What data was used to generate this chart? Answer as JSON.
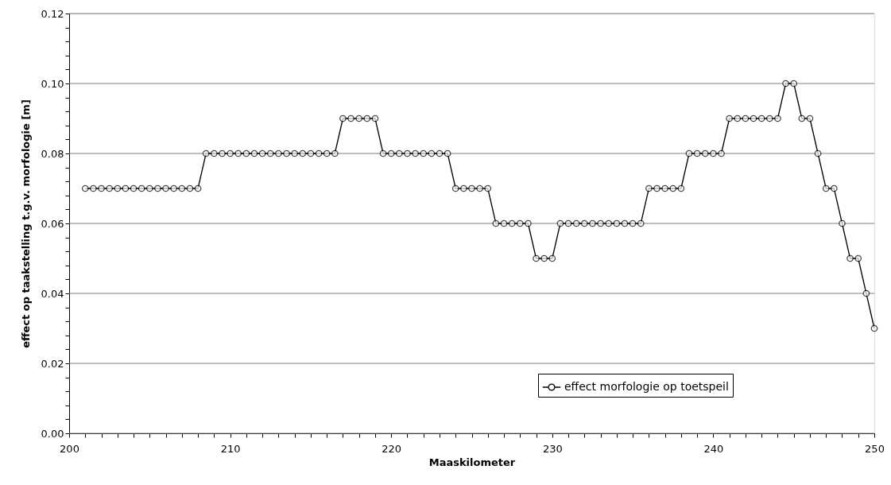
{
  "chart_data": {
    "type": "line",
    "xlabel": "Maaskilometer",
    "ylabel": "effect op taakstelling t.g.v. morfologie [m]",
    "x": [
      201,
      201.5,
      202,
      202.5,
      203,
      203.5,
      204,
      204.5,
      205,
      205.5,
      206,
      206.5,
      207,
      207.5,
      208,
      208.5,
      209,
      209.5,
      210,
      210.5,
      211,
      211.5,
      212,
      212.5,
      213,
      213.5,
      214,
      214.5,
      215,
      215.5,
      216,
      216.5,
      217,
      217.5,
      218,
      218.5,
      219,
      219.5,
      220,
      220.5,
      221,
      221.5,
      222,
      222.5,
      223,
      223.5,
      224,
      224.5,
      225,
      225.5,
      226,
      226.5,
      227,
      227.5,
      228,
      228.5,
      229,
      229.5,
      230,
      230.5,
      231,
      231.5,
      232,
      232.5,
      233,
      233.5,
      234,
      234.5,
      235,
      235.5,
      236,
      236.5,
      237,
      237.5,
      238,
      238.5,
      239,
      239.5,
      240,
      240.5,
      241,
      241.5,
      242,
      242.5,
      243,
      243.5,
      244,
      244.5,
      245,
      245.5,
      246,
      246.5,
      247,
      247.5,
      248,
      248.5,
      249,
      249.5,
      250
    ],
    "series": [
      {
        "name": "effect morfologie op toetspeil",
        "color": "#000000",
        "values": [
          0.07,
          0.07,
          0.07,
          0.07,
          0.07,
          0.07,
          0.07,
          0.07,
          0.07,
          0.07,
          0.07,
          0.07,
          0.07,
          0.07,
          0.07,
          0.08,
          0.08,
          0.08,
          0.08,
          0.08,
          0.08,
          0.08,
          0.08,
          0.08,
          0.08,
          0.08,
          0.08,
          0.08,
          0.08,
          0.08,
          0.08,
          0.08,
          0.09,
          0.09,
          0.09,
          0.09,
          0.09,
          0.08,
          0.08,
          0.08,
          0.08,
          0.08,
          0.08,
          0.08,
          0.08,
          0.08,
          0.07,
          0.07,
          0.07,
          0.07,
          0.07,
          0.06,
          0.06,
          0.06,
          0.06,
          0.06,
          0.05,
          0.05,
          0.05,
          0.06,
          0.06,
          0.06,
          0.06,
          0.06,
          0.06,
          0.06,
          0.06,
          0.06,
          0.06,
          0.06,
          0.07,
          0.07,
          0.07,
          0.07,
          0.07,
          0.08,
          0.08,
          0.08,
          0.08,
          0.08,
          0.09,
          0.09,
          0.09,
          0.09,
          0.09,
          0.09,
          0.09,
          0.1,
          0.1,
          0.09,
          0.09,
          0.08,
          0.07,
          0.07,
          0.06,
          0.05,
          0.05,
          0.04,
          0.03
        ]
      }
    ],
    "xlim": [
      200,
      250
    ],
    "xticks": [
      200,
      {
        "value": 201,
        "label": null
      },
      {
        "value": 202,
        "label": null
      },
      {
        "value": 203,
        "label": null
      },
      {
        "value": 204,
        "label": null
      },
      {
        "value": 205,
        "label": null
      },
      {
        "value": 206,
        "label": null
      },
      {
        "value": 207,
        "label": null
      },
      {
        "value": 208,
        "label": null
      },
      {
        "value": 209,
        "label": null
      },
      210,
      {
        "value": 211,
        "label": null
      },
      {
        "value": 212,
        "label": null
      },
      {
        "value": 213,
        "label": null
      },
      {
        "value": 214,
        "label": null
      },
      {
        "value": 215,
        "label": null
      },
      {
        "value": 216,
        "label": null
      },
      {
        "value": 217,
        "label": null
      },
      {
        "value": 218,
        "label": null
      },
      {
        "value": 219,
        "label": null
      },
      220,
      {
        "value": 221,
        "label": null
      },
      {
        "value": 222,
        "label": null
      },
      {
        "value": 223,
        "label": null
      },
      {
        "value": 224,
        "label": null
      },
      {
        "value": 225,
        "label": null
      },
      {
        "value": 226,
        "label": null
      },
      {
        "value": 227,
        "label": null
      },
      {
        "value": 228,
        "label": null
      },
      {
        "value": 229,
        "label": null
      },
      230,
      {
        "value": 231,
        "label": null
      },
      {
        "value": 232,
        "label": null
      },
      {
        "value": 233,
        "label": null
      },
      {
        "value": 234,
        "label": null
      },
      {
        "value": 235,
        "label": null
      },
      {
        "value": 236,
        "label": null
      },
      {
        "value": 237,
        "label": null
      },
      {
        "value": 238,
        "label": null
      },
      {
        "value": 239,
        "label": null
      },
      240,
      {
        "value": 241,
        "label": null
      },
      {
        "value": 242,
        "label": null
      },
      {
        "value": 243,
        "label": null
      },
      {
        "value": 244,
        "label": null
      },
      {
        "value": 245,
        "label": null
      },
      {
        "value": 246,
        "label": null
      },
      {
        "value": 247,
        "label": null
      },
      {
        "value": 248,
        "label": null
      },
      {
        "value": 249,
        "label": null
      },
      250
    ],
    "ylim": [
      0,
      0.12
    ],
    "yticks": [
      {
        "value": 0,
        "label": "0.00"
      },
      {
        "value": 0.004,
        "label": null
      },
      {
        "value": 0.008,
        "label": null
      },
      {
        "value": 0.012,
        "label": null
      },
      {
        "value": 0.016,
        "label": null
      },
      {
        "value": 0.02,
        "label": "0.02"
      },
      {
        "value": 0.024,
        "label": null
      },
      {
        "value": 0.028,
        "label": null
      },
      {
        "value": 0.032,
        "label": null
      },
      {
        "value": 0.036,
        "label": null
      },
      {
        "value": 0.04,
        "label": "0.04"
      },
      {
        "value": 0.044,
        "label": null
      },
      {
        "value": 0.048,
        "label": null
      },
      {
        "value": 0.052,
        "label": null
      },
      {
        "value": 0.056,
        "label": null
      },
      {
        "value": 0.06,
        "label": "0.06"
      },
      {
        "value": 0.064,
        "label": null
      },
      {
        "value": 0.068,
        "label": null
      },
      {
        "value": 0.072,
        "label": null
      },
      {
        "value": 0.076,
        "label": null
      },
      {
        "value": 0.08,
        "label": "0.08"
      },
      {
        "value": 0.084,
        "label": null
      },
      {
        "value": 0.088,
        "label": null
      },
      {
        "value": 0.092,
        "label": null
      },
      {
        "value": 0.096,
        "label": null
      },
      {
        "value": 0.1,
        "label": "0.10"
      },
      {
        "value": 0.104,
        "label": null
      },
      {
        "value": 0.108,
        "label": null
      },
      {
        "value": 0.112,
        "label": null
      },
      {
        "value": 0.116,
        "label": null
      },
      {
        "value": 0.12,
        "label": "0.12"
      }
    ],
    "grid": "y",
    "legend": "bottom right",
    "marker": "circle",
    "line_style": "solid"
  }
}
